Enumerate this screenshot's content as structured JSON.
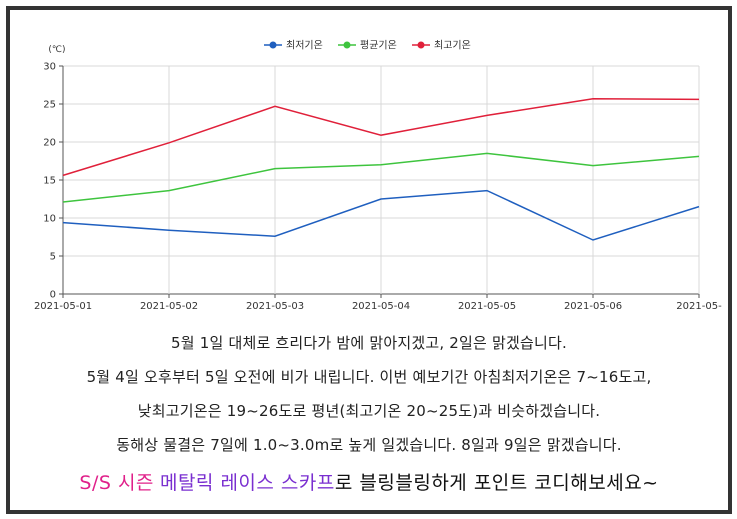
{
  "chart_data": {
    "type": "line",
    "unit": "(℃)",
    "categories": [
      "2021-05-01",
      "2021-05-02",
      "2021-05-03",
      "2021-05-04",
      "2021-05-05",
      "2021-05-06",
      "2021-05-"
    ],
    "y_ticks": [
      "0",
      "5",
      "10",
      "15",
      "20",
      "25",
      "30"
    ],
    "ylim": [
      0,
      30
    ],
    "grid": true,
    "legend_position": "top-center",
    "series": [
      {
        "name": "최저기온",
        "color": "#1f5fbf",
        "values": [
          9.4,
          8.4,
          7.6,
          12.5,
          13.6,
          7.1,
          11.5
        ]
      },
      {
        "name": "평균기온",
        "color": "#3ec43e",
        "values": [
          12.1,
          13.6,
          16.5,
          17.0,
          18.5,
          16.9,
          18.1
        ]
      },
      {
        "name": "최고기온",
        "color": "#e0203a",
        "values": [
          15.6,
          19.9,
          24.7,
          20.9,
          23.5,
          25.7,
          25.6
        ]
      }
    ]
  },
  "captions": [
    "5월 1일 대체로 흐리다가 밤에 맑아지겠고, 2일은 맑겠습니다.",
    "5월 4일 오후부터 5일 오전에 비가 내립니다. 이번 예보기간 아침최저기온은 7~16도고,",
    "낮최고기온은 19~26도로 평년(최고기온 20~25도)과 비슷하겠습니다.",
    "동해상 물결은 7일에 1.0~3.0m로 높게 일겠습니다. 8일과 9일은 맑겠습니다."
  ],
  "promo": {
    "part1": "S/S 시즌",
    "part2": "메탈릭 레이스 스카프",
    "part3": "로 블링블링하게 포인트 코디해보세요~",
    "color1": "#e0208a",
    "color2": "#7a2fd0",
    "color3": "#111111"
  }
}
